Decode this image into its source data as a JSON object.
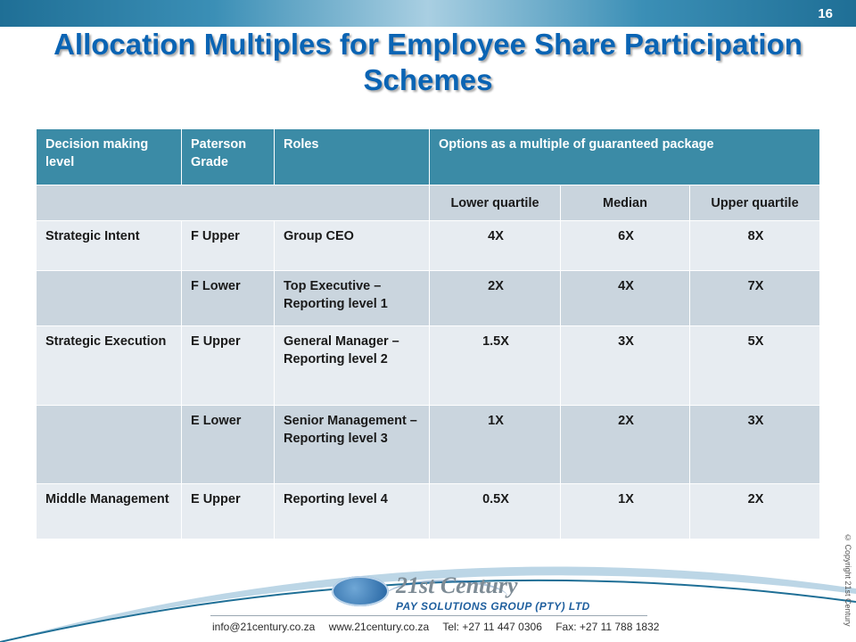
{
  "slide": {
    "page_number": "16",
    "title": "Allocation Multiples for Employee Share Participation Schemes"
  },
  "table": {
    "headers": [
      "Decision making level",
      "Paterson Grade",
      "Roles",
      "Options as a multiple of guaranteed package"
    ],
    "subheaders": [
      "Lower quartile",
      "Median",
      "Upper quartile"
    ],
    "rows": [
      {
        "level": "Strategic Intent",
        "grade": "F Upper",
        "role": "Group CEO",
        "lower": "4X",
        "median": "6X",
        "upper": "8X"
      },
      {
        "level": "",
        "grade": "F Lower",
        "role": "Top Executive – Reporting level 1",
        "lower": "2X",
        "median": "4X",
        "upper": "7X"
      },
      {
        "level": "Strategic Execution",
        "grade": "E Upper",
        "role": "General Manager – Reporting level 2",
        "lower": "1.5X",
        "median": "3X",
        "upper": "5X"
      },
      {
        "level": "",
        "grade": "E Lower",
        "role": "Senior Management – Reporting level 3",
        "lower": "1X",
        "median": "2X",
        "upper": "3X"
      },
      {
        "level": "Middle Management",
        "grade": "E Upper",
        "role": "Reporting level 4",
        "lower": "0.5X",
        "median": "1X",
        "upper": "2X"
      }
    ]
  },
  "footer": {
    "brand": "21st Century",
    "brand_sub": "PAY SOLUTIONS GROUP (PTY) LTD",
    "email": "info@21century.co.za",
    "website": "www.21century.co.za",
    "tel": "Tel: +27 11 447 0306",
    "fax": "Fax: +27 11 788 1832",
    "copyright": "© Copyright 21st Century"
  },
  "colors": {
    "header_bg": "#3b8ba6",
    "title": "#0a64b4",
    "row_light": "#e7ecf1",
    "row_dark": "#cad5de"
  }
}
